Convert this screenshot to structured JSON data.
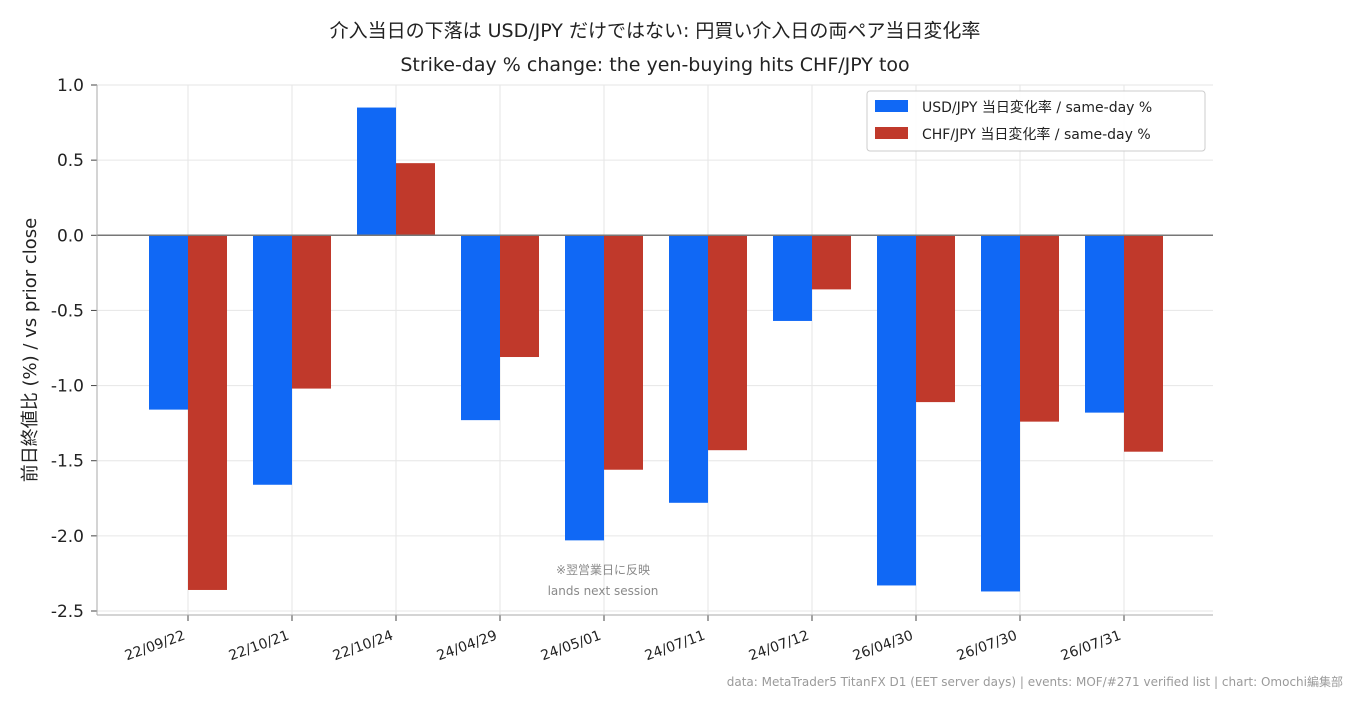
{
  "chart_data": {
    "type": "bar",
    "title": "介入当日の下落は USD/JPY だけではない: 円買い介入日の両ペア当日変化率",
    "subtitle": "Strike-day % change: the yen-buying hits CHF/JPY too",
    "ylabel": "前日終値比 (%) / vs prior close",
    "xlabel": "",
    "categories": [
      "22/09/22",
      "22/10/21",
      "22/10/24",
      "24/04/29",
      "24/05/01",
      "24/07/11",
      "24/07/12",
      "26/04/30",
      "26/07/30",
      "26/07/31"
    ],
    "series": [
      {
        "name": "USD/JPY 当日変化率 / same-day %",
        "color": "#1068f5",
        "values": [
          -1.16,
          -1.66,
          0.85,
          -1.23,
          -2.03,
          -1.78,
          -0.57,
          -2.33,
          -2.37,
          -1.18
        ]
      },
      {
        "name": "CHF/JPY 当日変化率 / same-day %",
        "color": "#c0392b",
        "values": [
          -2.36,
          -1.02,
          0.48,
          -0.81,
          -1.56,
          -1.43,
          -0.36,
          -1.11,
          -1.24,
          -1.44
        ]
      }
    ],
    "ylim": [
      -2.5,
      1.0
    ],
    "yticks": [
      1.0,
      0.5,
      0.0,
      -0.5,
      -1.0,
      -1.5,
      -2.0,
      -2.5
    ],
    "ytick_labels": [
      "1.0",
      "0.5",
      "0.0",
      "-0.5",
      "-1.0",
      "-1.5",
      "-2.0",
      "-2.5"
    ],
    "grid": true,
    "legend_position": "top-right",
    "annotation_lines": [
      "※翌営業日に反映",
      "lands next session"
    ],
    "footer": "data: MetaTrader5 TitanFX D1 (EET server days) | events: MOF/#271 verified list | chart: Omochi編集部"
  }
}
